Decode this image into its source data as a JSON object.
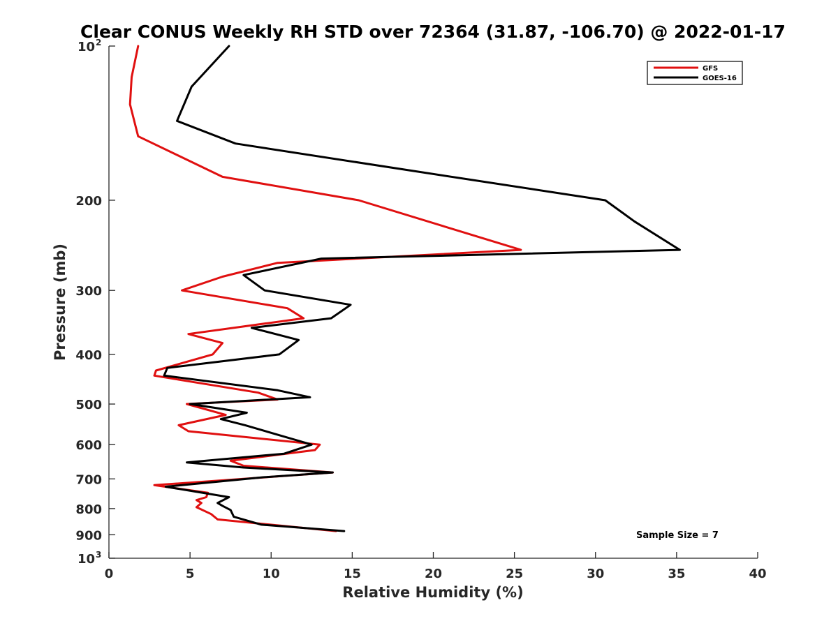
{
  "chart_data": {
    "type": "line",
    "title": "Clear CONUS Weekly RH STD over 72364 (31.87, -106.70) @ 2022-01-17",
    "xlabel": "Relative Humidity (%)",
    "ylabel": "Pressure (mb)",
    "xlim": [
      0,
      40
    ],
    "ylim": [
      100,
      1000
    ],
    "y_scale": "log",
    "y_reversed": true,
    "grid": false,
    "legend_position": "top-right",
    "x_ticks": [
      "0",
      "5",
      "10",
      "15",
      "20",
      "25",
      "30",
      "35",
      "40"
    ],
    "y_ticks": [
      {
        "value": 100,
        "base": "10",
        "exp": "2"
      },
      {
        "value": 200,
        "label": "200"
      },
      {
        "value": 300,
        "label": "300"
      },
      {
        "value": 400,
        "label": "400"
      },
      {
        "value": 500,
        "label": "500"
      },
      {
        "value": 600,
        "label": "600"
      },
      {
        "value": 700,
        "label": "700"
      },
      {
        "value": 800,
        "label": "800"
      },
      {
        "value": 900,
        "label": "900"
      },
      {
        "value": 1000,
        "base": "10",
        "exp": "3"
      }
    ],
    "annotation": "Sample Size = 7",
    "series": [
      {
        "name": "GFS",
        "color": "#e01010",
        "points": [
          [
            1.8,
            100
          ],
          [
            1.4,
            115
          ],
          [
            1.3,
            130
          ],
          [
            1.8,
            150
          ],
          [
            7.0,
            180
          ],
          [
            15.4,
            200
          ],
          [
            25.4,
            250
          ],
          [
            10.4,
            265
          ],
          [
            7.0,
            282
          ],
          [
            4.5,
            300
          ],
          [
            11.0,
            325
          ],
          [
            12.0,
            340
          ],
          [
            4.9,
            365
          ],
          [
            7.0,
            380
          ],
          [
            6.4,
            400
          ],
          [
            2.9,
            430
          ],
          [
            2.8,
            440
          ],
          [
            9.2,
            475
          ],
          [
            10.4,
            490
          ],
          [
            4.8,
            500
          ],
          [
            7.2,
            525
          ],
          [
            4.3,
            550
          ],
          [
            4.9,
            565
          ],
          [
            13.0,
            600
          ],
          [
            12.7,
            615
          ],
          [
            7.5,
            645
          ],
          [
            8.3,
            660
          ],
          [
            13.8,
            680
          ],
          [
            2.8,
            720
          ],
          [
            6.1,
            745
          ],
          [
            6.0,
            760
          ],
          [
            5.4,
            770
          ],
          [
            5.7,
            780
          ],
          [
            5.4,
            795
          ],
          [
            6.3,
            820
          ],
          [
            6.7,
            840
          ],
          [
            14.0,
            885
          ]
        ]
      },
      {
        "name": "GOES-16",
        "color": "#000000",
        "points": [
          [
            7.4,
            100
          ],
          [
            5.1,
            120
          ],
          [
            4.2,
            140
          ],
          [
            7.8,
            155
          ],
          [
            18.6,
            175
          ],
          [
            30.6,
            200
          ],
          [
            32.4,
            220
          ],
          [
            35.2,
            250
          ],
          [
            13.1,
            260
          ],
          [
            8.3,
            280
          ],
          [
            9.6,
            300
          ],
          [
            14.9,
            320
          ],
          [
            13.7,
            340
          ],
          [
            8.8,
            355
          ],
          [
            11.7,
            375
          ],
          [
            10.5,
            400
          ],
          [
            3.6,
            425
          ],
          [
            3.4,
            440
          ],
          [
            10.4,
            470
          ],
          [
            12.4,
            485
          ],
          [
            5.0,
            500
          ],
          [
            8.5,
            520
          ],
          [
            6.9,
            535
          ],
          [
            8.4,
            550
          ],
          [
            12.5,
            600
          ],
          [
            10.8,
            625
          ],
          [
            4.8,
            650
          ],
          [
            8.3,
            665
          ],
          [
            13.8,
            680
          ],
          [
            9.5,
            695
          ],
          [
            3.5,
            725
          ],
          [
            7.4,
            760
          ],
          [
            6.7,
            780
          ],
          [
            7.0,
            790
          ],
          [
            7.5,
            805
          ],
          [
            7.7,
            830
          ],
          [
            9.4,
            860
          ],
          [
            14.5,
            885
          ]
        ]
      }
    ]
  }
}
